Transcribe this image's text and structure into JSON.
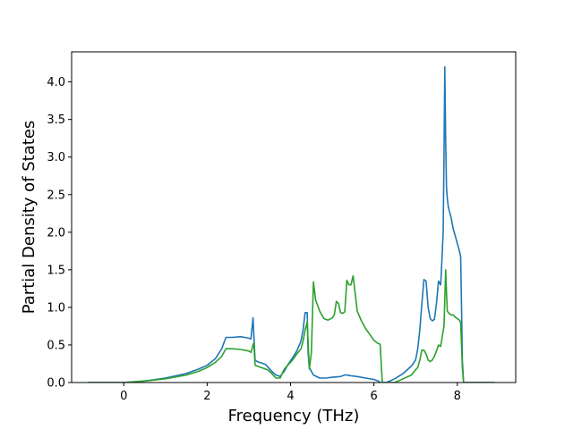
{
  "chart_data": {
    "type": "line",
    "title": "",
    "xlabel": "Frequency (THz)",
    "ylabel": "Partial Density of States",
    "xlim": [
      -1.25,
      9.4
    ],
    "ylim": [
      0.0,
      4.4
    ],
    "xticks": [
      0,
      2,
      4,
      6,
      8
    ],
    "xtick_labels": [
      "0",
      "2",
      "4",
      "6",
      "8"
    ],
    "yticks": [
      0.0,
      0.5,
      1.0,
      1.5,
      2.0,
      2.5,
      3.0,
      3.5,
      4.0
    ],
    "ytick_labels": [
      "0.0",
      "0.5",
      "1.0",
      "1.5",
      "2.0",
      "2.5",
      "3.0",
      "3.5",
      "4.0"
    ],
    "grid": false,
    "legend": "none",
    "series": [
      {
        "color": "#1f77b4",
        "x": [
          -0.85,
          0.0,
          0.5,
          1.0,
          1.5,
          1.8,
          2.0,
          2.2,
          2.35,
          2.45,
          2.6,
          2.8,
          3.0,
          3.05,
          3.1,
          3.15,
          3.2,
          3.4,
          3.55,
          3.65,
          3.75,
          3.85,
          3.95,
          4.05,
          4.15,
          4.25,
          4.3,
          4.35,
          4.4,
          4.42,
          4.45,
          4.55,
          4.7,
          4.85,
          5.0,
          5.2,
          5.3,
          5.35,
          5.45,
          5.6,
          5.8,
          6.0,
          6.1,
          6.15,
          6.3,
          6.5,
          6.7,
          6.9,
          7.0,
          7.05,
          7.1,
          7.15,
          7.2,
          7.25,
          7.3,
          7.35,
          7.4,
          7.45,
          7.5,
          7.55,
          7.6,
          7.62,
          7.66,
          7.68,
          7.7,
          7.72,
          7.74,
          7.76,
          7.78,
          7.8,
          7.85,
          7.9,
          7.95,
          8.0,
          8.05,
          8.08,
          8.1,
          8.12,
          8.15,
          8.9
        ],
        "y": [
          0.0,
          0.0,
          0.02,
          0.06,
          0.12,
          0.18,
          0.23,
          0.32,
          0.45,
          0.6,
          0.6,
          0.61,
          0.59,
          0.58,
          0.86,
          0.3,
          0.28,
          0.24,
          0.15,
          0.1,
          0.08,
          0.15,
          0.25,
          0.33,
          0.42,
          0.55,
          0.7,
          0.93,
          0.93,
          0.4,
          0.2,
          0.1,
          0.06,
          0.06,
          0.07,
          0.08,
          0.1,
          0.1,
          0.09,
          0.08,
          0.06,
          0.04,
          0.02,
          0.0,
          0.0,
          0.05,
          0.12,
          0.22,
          0.3,
          0.45,
          0.7,
          1.05,
          1.37,
          1.35,
          1.0,
          0.85,
          0.82,
          0.84,
          1.05,
          1.35,
          1.3,
          1.5,
          2.0,
          3.0,
          4.2,
          3.2,
          2.6,
          2.45,
          2.35,
          2.3,
          2.2,
          2.05,
          1.95,
          1.85,
          1.75,
          1.68,
          1.0,
          0.3,
          0.0,
          0.0
        ]
      },
      {
        "color": "#2ca02c",
        "x": [
          -0.85,
          0.0,
          0.5,
          1.0,
          1.5,
          1.8,
          2.0,
          2.2,
          2.35,
          2.45,
          2.6,
          2.8,
          3.0,
          3.05,
          3.1,
          3.12,
          3.15,
          3.3,
          3.45,
          3.55,
          3.65,
          3.75,
          3.85,
          3.95,
          4.05,
          4.15,
          4.25,
          4.3,
          4.35,
          4.4,
          4.42,
          4.45,
          4.5,
          4.55,
          4.6,
          4.7,
          4.8,
          4.9,
          5.0,
          5.05,
          5.1,
          5.15,
          5.2,
          5.25,
          5.3,
          5.35,
          5.4,
          5.45,
          5.5,
          5.6,
          5.7,
          5.8,
          5.9,
          6.0,
          6.1,
          6.15,
          6.2,
          6.5,
          6.7,
          6.9,
          7.0,
          7.05,
          7.1,
          7.15,
          7.2,
          7.25,
          7.3,
          7.35,
          7.4,
          7.45,
          7.5,
          7.55,
          7.6,
          7.65,
          7.68,
          7.7,
          7.72,
          7.74,
          7.76,
          7.8,
          7.85,
          7.9,
          7.95,
          8.0,
          8.05,
          8.08,
          8.1,
          8.12,
          8.15,
          8.9
        ],
        "y": [
          0.0,
          0.0,
          0.02,
          0.05,
          0.1,
          0.15,
          0.2,
          0.27,
          0.35,
          0.45,
          0.45,
          0.44,
          0.42,
          0.4,
          0.5,
          0.53,
          0.23,
          0.2,
          0.17,
          0.12,
          0.06,
          0.06,
          0.18,
          0.24,
          0.3,
          0.38,
          0.45,
          0.55,
          0.7,
          0.8,
          0.55,
          0.18,
          0.4,
          1.34,
          1.1,
          0.95,
          0.85,
          0.83,
          0.86,
          0.9,
          1.08,
          1.05,
          0.93,
          0.92,
          0.94,
          1.36,
          1.3,
          1.3,
          1.42,
          0.95,
          0.82,
          0.72,
          0.64,
          0.56,
          0.52,
          0.51,
          0.0,
          0.0,
          0.05,
          0.1,
          0.17,
          0.2,
          0.3,
          0.43,
          0.43,
          0.38,
          0.3,
          0.28,
          0.3,
          0.35,
          0.42,
          0.5,
          0.48,
          0.65,
          0.75,
          1.1,
          1.5,
          1.2,
          0.95,
          0.92,
          0.9,
          0.9,
          0.87,
          0.85,
          0.83,
          0.8,
          0.5,
          0.2,
          0.0,
          0.0
        ]
      }
    ]
  }
}
